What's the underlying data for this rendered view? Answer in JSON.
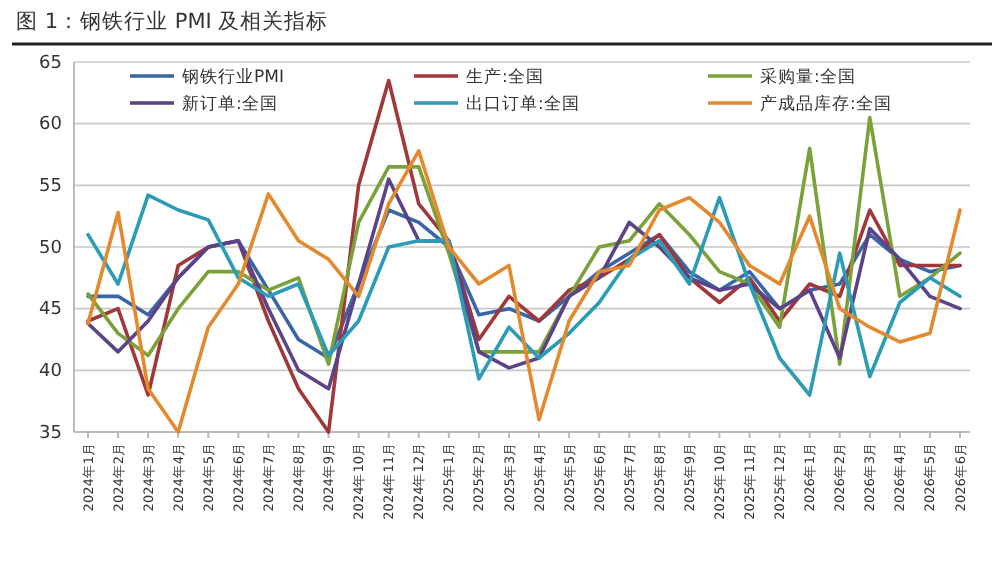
{
  "chart_data": {
    "type": "line",
    "title": "图 1：钢铁行业 PMI 及相关指标",
    "categories": [
      "2024年1月",
      "2024年2月",
      "2024年3月",
      "2024年4月",
      "2024年5月",
      "2024年6月",
      "2024年7月",
      "2024年8月",
      "2024年9月",
      "2024年10月",
      "2024年11月",
      "2024年12月",
      "2025年1月",
      "2025年2月",
      "2025年3月",
      "2025年4月",
      "2025年5月",
      "2025年6月",
      "2025年7月",
      "2025年8月",
      "2025年9月",
      "2025年10月",
      "2025年11月",
      "2025年12月",
      "2026年1月",
      "2026年2月",
      "2026年3月",
      "2026年4月",
      "2026年5月",
      "2026年6月"
    ],
    "series": [
      {
        "name": "钢铁行业PMI",
        "color": "#3a66a7",
        "values": [
          46,
          46,
          44.5,
          47.5,
          50,
          50.5,
          46.5,
          42.5,
          41,
          47,
          53,
          52,
          50,
          44.5,
          45,
          44,
          46,
          48,
          49.5,
          51,
          48,
          46.5,
          48,
          45,
          46.5,
          47,
          51,
          49,
          48,
          48.5
        ]
      },
      {
        "name": "生产:全国",
        "color": "#a0373a",
        "values": [
          44,
          45,
          38,
          48.5,
          50,
          50.5,
          44,
          38.5,
          35,
          55,
          63.5,
          53.5,
          50.5,
          42.5,
          46,
          44,
          46.5,
          47.5,
          49,
          51,
          47.5,
          45.5,
          47.5,
          44,
          47,
          46,
          53,
          48.5,
          48.5,
          48.5
        ]
      },
      {
        "name": "采购量:全国",
        "color": "#7ba13a",
        "values": [
          46.2,
          43,
          41.2,
          45,
          48,
          48,
          46.5,
          47.5,
          40.5,
          52,
          56.5,
          56.5,
          49.5,
          41.5,
          41.5,
          41.5,
          46,
          50,
          50.5,
          53.5,
          51,
          48,
          47,
          43.5,
          58,
          40.5,
          60.5,
          46,
          47.5,
          49.5
        ]
      },
      {
        "name": "新订单:全国",
        "color": "#5c4387",
        "values": [
          43.8,
          41.5,
          44,
          47.5,
          50,
          50.5,
          45,
          40,
          38.5,
          47,
          55.5,
          50.5,
          50.5,
          41.5,
          40.2,
          41,
          46,
          47.5,
          52,
          50,
          47.5,
          46.5,
          47,
          45,
          46.5,
          41,
          51.5,
          49,
          46,
          45
        ]
      },
      {
        "name": "出口订单:全国",
        "color": "#2b9bb6",
        "values": [
          51,
          47,
          54.2,
          53,
          52.2,
          47.5,
          46,
          47,
          41.2,
          44,
          50,
          50.5,
          50.5,
          39.3,
          43.5,
          41,
          43,
          45.5,
          49,
          50.5,
          47,
          54,
          47,
          41,
          38,
          49.5,
          39.5,
          45.5,
          47.5,
          46
        ]
      },
      {
        "name": "产成品库存:全国",
        "color": "#e38a2e",
        "values": [
          43.8,
          52.8,
          38.5,
          35,
          43.5,
          47,
          54.3,
          50.5,
          49,
          46,
          53.5,
          57.8,
          50,
          47,
          48.5,
          36,
          44,
          48,
          48.5,
          53,
          54,
          52,
          48.5,
          47,
          52.5,
          45,
          43.5,
          42.3,
          43,
          53
        ]
      }
    ],
    "ylim": [
      35,
      65
    ],
    "yticks": [
      35,
      40,
      45,
      50,
      55,
      60,
      65
    ],
    "grid": "y",
    "legend": "top",
    "marker": "none",
    "line_style": "solid"
  }
}
